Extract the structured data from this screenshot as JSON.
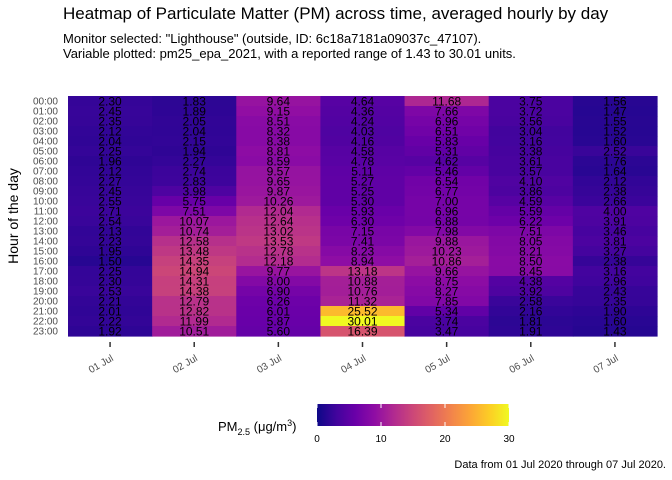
{
  "chart_data": {
    "type": "heatmap",
    "title": "Heatmap of Particulate Matter (PM) across time, averaged hourly by day",
    "subtitle_lines": [
      "Monitor selected: \"Lighthouse\" (outside, ID: 6c18a7181a09037c_47107).",
      "Variable plotted: pm25_epa_2021, with a reported range of 1.43 to 30.01 units."
    ],
    "caption": "Data from 01 Jul 2020 through 07 Jul 2020.",
    "ylabel": "Hour of the day",
    "xlabel": "",
    "x": [
      "01 Jul",
      "02 Jul",
      "03 Jul",
      "04 Jul",
      "05 Jul",
      "06 Jul",
      "07 Jul"
    ],
    "y": [
      "00:00",
      "01:00",
      "02:00",
      "03:00",
      "04:00",
      "05:00",
      "06:00",
      "07:00",
      "08:00",
      "09:00",
      "10:00",
      "11:00",
      "12:00",
      "13:00",
      "14:00",
      "15:00",
      "16:00",
      "17:00",
      "18:00",
      "19:00",
      "20:00",
      "21:00",
      "22:00",
      "23:00"
    ],
    "values": [
      [
        2.3,
        1.83,
        9.64,
        4.64,
        11.68,
        3.75,
        1.56
      ],
      [
        2.45,
        1.89,
        9.15,
        4.36,
        7.66,
        3.72,
        1.47
      ],
      [
        2.35,
        2.05,
        8.51,
        4.24,
        6.96,
        3.56,
        1.55
      ],
      [
        2.12,
        2.04,
        8.32,
        4.03,
        6.51,
        3.04,
        1.52
      ],
      [
        2.04,
        2.15,
        8.38,
        4.16,
        5.83,
        3.16,
        1.6
      ],
      [
        2.25,
        1.94,
        8.81,
        4.58,
        5.31,
        3.38,
        2.52
      ],
      [
        1.96,
        2.27,
        8.59,
        4.78,
        4.62,
        3.61,
        1.76
      ],
      [
        2.12,
        2.74,
        9.57,
        5.11,
        5.46,
        3.57,
        1.64
      ],
      [
        2.27,
        2.83,
        9.65,
        5.27,
        6.54,
        4.1,
        2.12
      ],
      [
        2.45,
        3.98,
        9.87,
        5.25,
        6.77,
        3.86,
        2.38
      ],
      [
        2.55,
        5.75,
        10.26,
        5.3,
        7.0,
        4.59,
        2.66
      ],
      [
        2.71,
        7.51,
        12.04,
        5.93,
        6.96,
        5.59,
        4.0
      ],
      [
        2.54,
        10.07,
        12.64,
        6.3,
        6.88,
        6.22,
        3.91
      ],
      [
        2.13,
        10.74,
        13.02,
        7.15,
        7.98,
        7.51,
        3.46
      ],
      [
        2.23,
        12.58,
        13.53,
        7.41,
        9.88,
        8.05,
        3.81
      ],
      [
        1.95,
        13.48,
        12.78,
        8.23,
        10.23,
        8.21,
        3.27
      ],
      [
        1.5,
        14.35,
        12.18,
        8.94,
        10.86,
        8.5,
        2.38
      ],
      [
        2.25,
        14.94,
        9.77,
        13.18,
        9.66,
        8.45,
        3.16
      ],
      [
        2.3,
        14.31,
        8.0,
        10.88,
        8.75,
        4.38,
        2.96
      ],
      [
        2.53,
        14.38,
        6.9,
        10.76,
        8.27,
        3.92,
        2.43
      ],
      [
        2.21,
        12.79,
        6.26,
        11.32,
        7.85,
        2.58,
        2.35
      ],
      [
        2.01,
        12.82,
        6.01,
        25.52,
        5.34,
        2.16,
        1.9
      ],
      [
        2.22,
        11.99,
        5.87,
        30.01,
        3.74,
        1.81,
        1.6
      ],
      [
        1.92,
        10.51,
        5.6,
        16.39,
        3.47,
        1.91,
        1.43
      ]
    ],
    "legend": {
      "title_main": "PM",
      "title_sub": "2.5",
      "title_unit_prefix": " (μg/m",
      "title_unit_sup": "3",
      "title_unit_suffix": ")",
      "ticks": [
        0,
        10,
        20,
        30
      ],
      "range": [
        0,
        30
      ],
      "placement": "bottom"
    },
    "colormap": "plasma",
    "colormap_stops": [
      "#0d0887",
      "#41049d",
      "#6a00a8",
      "#8f0da4",
      "#b12a90",
      "#cc4778",
      "#e16462",
      "#f2844b",
      "#fca636",
      "#fcce25",
      "#f0f921"
    ],
    "grid": false
  }
}
